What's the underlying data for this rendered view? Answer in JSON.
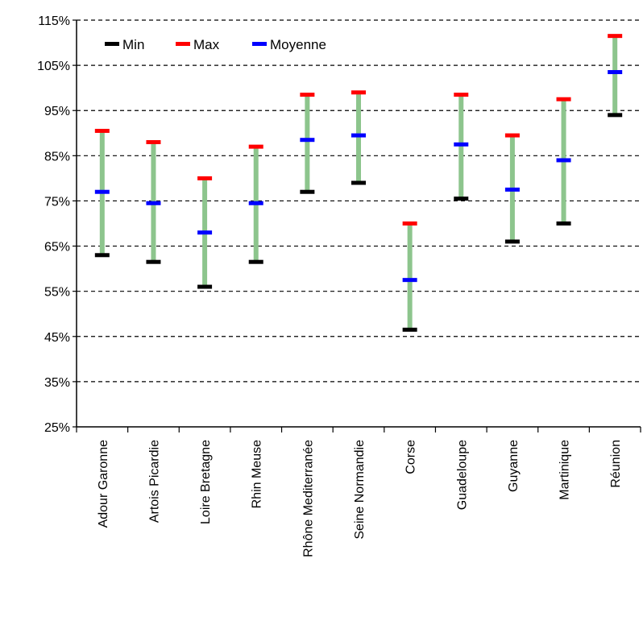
{
  "chart_data": {
    "type": "range",
    "categories": [
      "Adour Garonne",
      "Artois Picardie",
      "Loire Bretagne",
      "Rhin Meuse",
      "Rhône Mediterranée",
      "Seine Normandie",
      "Corse",
      "Guadeloupe",
      "Guyanne",
      "Martinique",
      "Réunion"
    ],
    "series": [
      {
        "name": "Min",
        "color": "#000000",
        "values": [
          63,
          61.5,
          56,
          61.5,
          77,
          79,
          46.5,
          75.5,
          66,
          70,
          94
        ]
      },
      {
        "name": "Max",
        "color": "#ff0000",
        "values": [
          90.5,
          88,
          80,
          87,
          98.5,
          99,
          70,
          98.5,
          89.5,
          97.5,
          111.5
        ]
      },
      {
        "name": "Moyenne",
        "color": "#0000ff",
        "values": [
          77,
          74.5,
          68,
          74.5,
          88.5,
          89.5,
          57.5,
          87.5,
          77.5,
          84,
          103.5
        ]
      }
    ],
    "range_line_color": "#8dc58d",
    "y_ticks": [
      "25%",
      "35%",
      "45%",
      "55%",
      "65%",
      "75%",
      "85%",
      "95%",
      "105%",
      "115%"
    ],
    "ylim": [
      25,
      115
    ],
    "grid": "dashed horizontal",
    "legend": "top-left"
  }
}
